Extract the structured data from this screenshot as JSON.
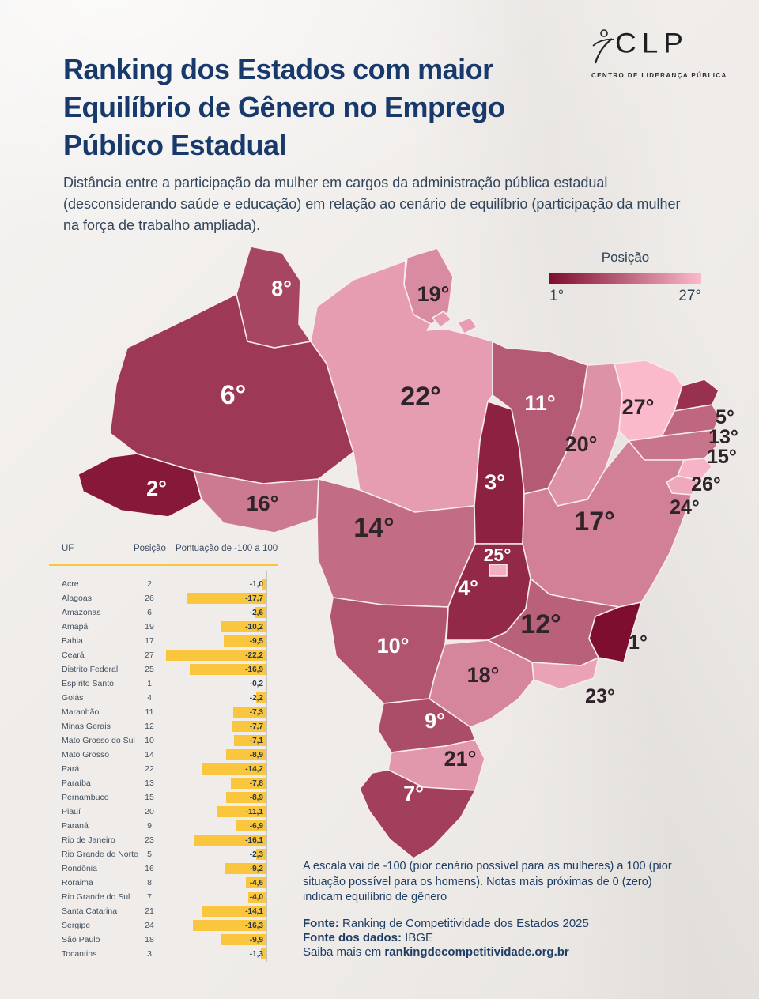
{
  "header": {
    "title": "Ranking dos Estados com maior Equilíbrio de Gênero no Emprego Público Estadual",
    "subtitle": "Distância entre a participação da mulher em cargos da administração pública estadual (desconsiderando saúde e educação) em relação ao cenário de equilíbrio (participação da mulher na força de trabalho ampliada)."
  },
  "logo": {
    "acronym": "CLP",
    "tagline": "CENTRO DE LIDERANÇA PÚBLICA"
  },
  "legend": {
    "title": "Posição",
    "min_label": "1°",
    "max_label": "27°",
    "dark_color": "#7E0E2E",
    "light_color": "#FBBACB"
  },
  "table": {
    "columns": [
      "UF",
      "Posição",
      "Pontuação de -100 a 100"
    ],
    "bar_color": "#F9C63E"
  },
  "notes": {
    "scale_note": "A escala vai de -100 (pior cenário possível para as mulheres) a 100 (pior situação possível para os homens). Notas mais próximas de 0 (zero) indicam equilíbrio de gênero",
    "source_label": "Fonte:",
    "source_value": "Ranking de Competitividade dos Estados 2025",
    "data_source_label": "Fonte dos dados:",
    "data_source_value": "IBGE",
    "more_label": "Saiba mais em",
    "more_link": "rankingdecompetitividade.org.br"
  },
  "chart_data": [
    {
      "type": "choropleth",
      "title": "Ranking dos Estados com maior Equilíbrio de Gênero no Emprego Público Estadual",
      "legend_title": "Posição",
      "rank_range": [
        1,
        27
      ],
      "legend_position": "top-right",
      "states": [
        {
          "uf": "Acre",
          "code": "AC",
          "rank": 2,
          "score": -1.0
        },
        {
          "uf": "Alagoas",
          "code": "AL",
          "rank": 26,
          "score": -17.7
        },
        {
          "uf": "Amazonas",
          "code": "AM",
          "rank": 6,
          "score": -2.6
        },
        {
          "uf": "Amapá",
          "code": "AP",
          "rank": 19,
          "score": -10.2
        },
        {
          "uf": "Bahia",
          "code": "BA",
          "rank": 17,
          "score": -9.5
        },
        {
          "uf": "Ceará",
          "code": "CE",
          "rank": 27,
          "score": -22.2
        },
        {
          "uf": "Distrito Federal",
          "code": "DF",
          "rank": 25,
          "score": -16.9
        },
        {
          "uf": "Espírito Santo",
          "code": "ES",
          "rank": 1,
          "score": -0.2
        },
        {
          "uf": "Goiás",
          "code": "GO",
          "rank": 4,
          "score": -2.2
        },
        {
          "uf": "Maranhão",
          "code": "MA",
          "rank": 11,
          "score": -7.3
        },
        {
          "uf": "Minas Gerais",
          "code": "MG",
          "rank": 12,
          "score": -7.7
        },
        {
          "uf": "Mato Grosso do Sul",
          "code": "MS",
          "rank": 10,
          "score": -7.1
        },
        {
          "uf": "Mato Grosso",
          "code": "MT",
          "rank": 14,
          "score": -8.9
        },
        {
          "uf": "Pará",
          "code": "PA",
          "rank": 22,
          "score": -14.2
        },
        {
          "uf": "Paraíba",
          "code": "PB",
          "rank": 13,
          "score": -7.8
        },
        {
          "uf": "Pernambuco",
          "code": "PE",
          "rank": 15,
          "score": -8.9
        },
        {
          "uf": "Piauí",
          "code": "PI",
          "rank": 20,
          "score": -11.1
        },
        {
          "uf": "Paraná",
          "code": "PR",
          "rank": 9,
          "score": -6.9
        },
        {
          "uf": "Rio de Janeiro",
          "code": "RJ",
          "rank": 23,
          "score": -16.1
        },
        {
          "uf": "Rio Grande do Norte",
          "code": "RN",
          "rank": 5,
          "score": -2.3
        },
        {
          "uf": "Rondônia",
          "code": "RO",
          "rank": 16,
          "score": -9.2
        },
        {
          "uf": "Roraima",
          "code": "RR",
          "rank": 8,
          "score": -4.6
        },
        {
          "uf": "Rio Grande do Sul",
          "code": "RS",
          "rank": 7,
          "score": -4.0
        },
        {
          "uf": "Santa Catarina",
          "code": "SC",
          "rank": 21,
          "score": -14.1
        },
        {
          "uf": "Sergipe",
          "code": "SE",
          "rank": 24,
          "score": -16.3
        },
        {
          "uf": "São Paulo",
          "code": "SP",
          "rank": 18,
          "score": -9.9
        },
        {
          "uf": "Tocantins",
          "code": "TO",
          "rank": 3,
          "score": -1.3
        }
      ]
    },
    {
      "type": "bar",
      "orientation": "horizontal",
      "title": "Pontuação de -100 a 100",
      "categories": [
        "Acre",
        "Alagoas",
        "Amazonas",
        "Amapá",
        "Bahia",
        "Ceará",
        "Distrito Federal",
        "Espírito Santo",
        "Goiás",
        "Maranhão",
        "Minas Gerais",
        "Mato Grosso do Sul",
        "Mato Grosso",
        "Pará",
        "Paraíba",
        "Pernambuco",
        "Piauí",
        "Paraná",
        "Rio de Janeiro",
        "Rio Grande do Norte",
        "Rondônia",
        "Roraima",
        "Rio Grande do Sul",
        "Santa Catarina",
        "Sergipe",
        "São Paulo",
        "Tocantins"
      ],
      "positions": [
        2,
        26,
        6,
        19,
        17,
        27,
        25,
        1,
        4,
        11,
        12,
        10,
        14,
        22,
        13,
        15,
        20,
        9,
        23,
        5,
        16,
        8,
        7,
        21,
        24,
        18,
        3
      ],
      "values": [
        -1.0,
        -17.7,
        -2.6,
        -10.2,
        -9.5,
        -22.2,
        -16.9,
        -0.2,
        -2.2,
        -7.3,
        -7.7,
        -7.1,
        -8.9,
        -14.2,
        -7.8,
        -8.9,
        -11.1,
        -6.9,
        -16.1,
        -2.3,
        -9.2,
        -4.6,
        -4.0,
        -14.1,
        -16.3,
        -9.9,
        -1.3
      ],
      "value_labels": [
        "-1,0",
        "-17,7",
        "-2,6",
        "-10,2",
        "-9,5",
        "-22,2",
        "-16,9",
        "-0,2",
        "-2,2",
        "-7,3",
        "-7,7",
        "-7,1",
        "-8,9",
        "-14,2",
        "-7,8",
        "-8,9",
        "-11,1",
        "-6,9",
        "-16,1",
        "-2,3",
        "-9,2",
        "-4,6",
        "-4,0",
        "-14,1",
        "-16,3",
        "-9,9",
        "-1,3"
      ],
      "xlim": [
        -22.2,
        0
      ]
    }
  ]
}
